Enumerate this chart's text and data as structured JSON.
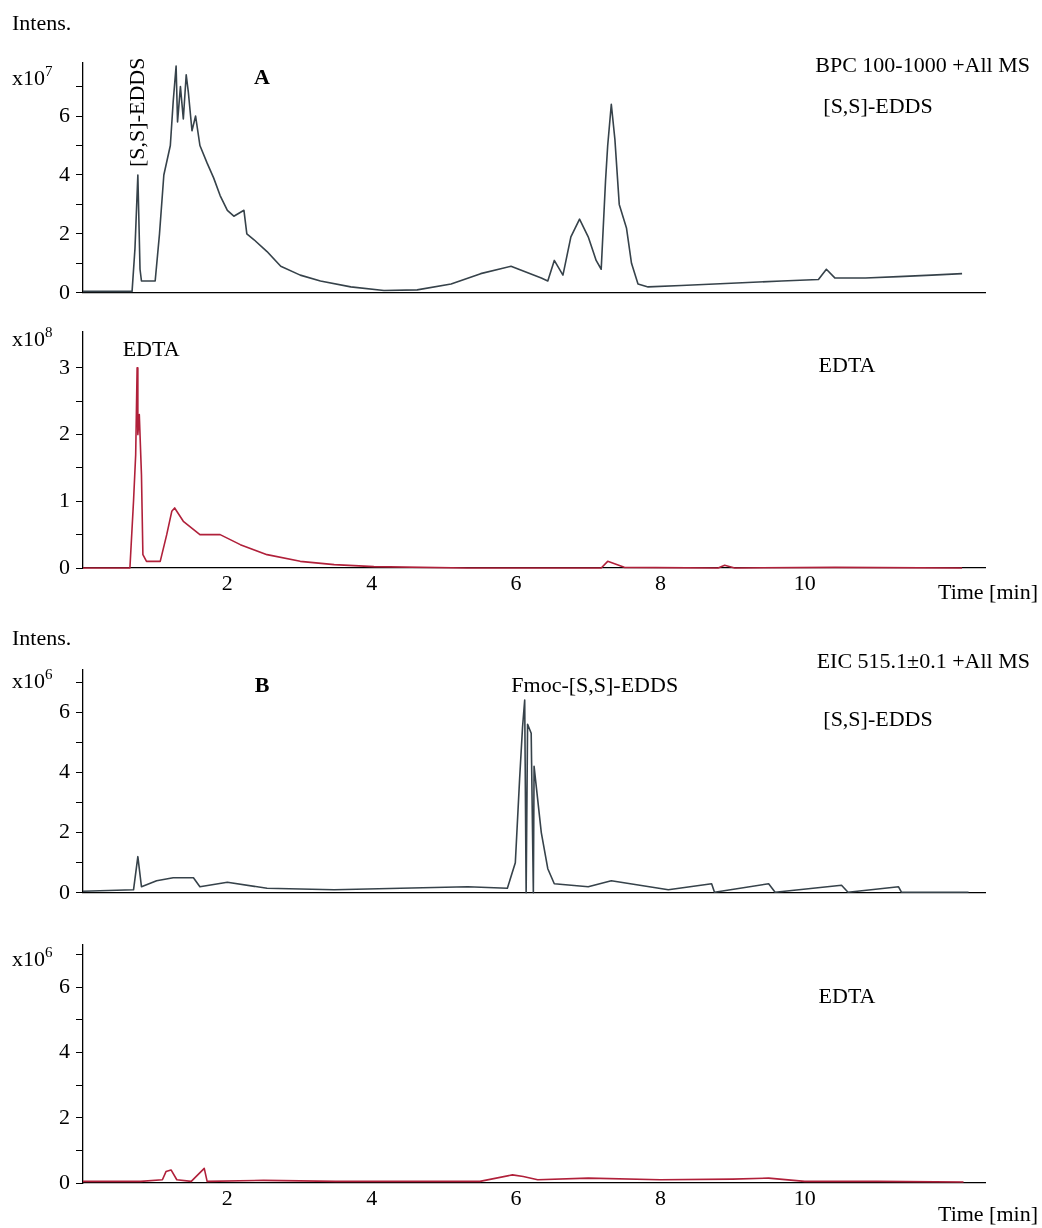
{
  "chart_data": [
    {
      "type": "line",
      "title": "Intens.",
      "ylabel": "x10$^{7}$",
      "tick_labels": "y",
      "xlim": [
        0,
        12.5
      ],
      "xticks": [
        2,
        4,
        6,
        8,
        10
      ],
      "ylim": [
        0,
        7.8
      ],
      "yticks": [
        0,
        {
          "value": 1,
          "label": null
        },
        2,
        {
          "value": 3,
          "label": null
        },
        4,
        {
          "value": 5,
          "label": null
        },
        6,
        {
          "value": 7,
          "label": null
        }
      ],
      "series": [
        {
          "color": "#36424a",
          "x": [
            0,
            0.68,
            0.72,
            0.76,
            0.79,
            0.81,
            1.0,
            1.06,
            1.12,
            1.21,
            1.25,
            1.29,
            1.31,
            1.35,
            1.39,
            1.43,
            1.46,
            1.51,
            1.56,
            1.62,
            1.72,
            1.81,
            1.9,
            2.0,
            2.09,
            2.23,
            2.27,
            2.37,
            2.55,
            2.74,
            3.01,
            3.29,
            3.71,
            4.17,
            4.63,
            5.1,
            5.51,
            5.93,
            6.35,
            6.44,
            6.53,
            6.65,
            6.76,
            6.88,
            7.0,
            7.11,
            7.18,
            7.24,
            7.27,
            7.32,
            7.37,
            7.43,
            7.53,
            7.6,
            7.69,
            7.83,
            8.29,
            8.75,
            9.21,
            9.68,
            10.19,
            10.3,
            10.42,
            10.84,
            11.3,
            11.76,
            12.18
          ],
          "values": [
            0.05,
            0.05,
            1.5,
            4.0,
            0.8,
            0.4,
            0.4,
            2.0,
            4.0,
            5.0,
            6.5,
            7.7,
            5.8,
            7.0,
            5.9,
            7.4,
            6.8,
            5.5,
            6.0,
            5.0,
            4.4,
            3.9,
            3.3,
            2.8,
            2.6,
            2.8,
            2.0,
            1.8,
            1.4,
            0.9,
            0.6,
            0.4,
            0.2,
            0.08,
            0.1,
            0.3,
            0.65,
            0.9,
            0.5,
            0.4,
            1.1,
            0.6,
            1.9,
            2.5,
            1.9,
            1.1,
            0.8,
            3.8,
            5.0,
            6.4,
            5.2,
            3.0,
            2.2,
            1.0,
            0.3,
            0.2,
            0.25,
            0.3,
            0.35,
            0.4,
            0.45,
            0.8,
            0.5,
            0.5,
            0.55,
            0.6,
            0.65
          ]
        }
      ],
      "annotations": [
        {
          "text": "[S,S]-EDDS",
          "x": 0.76,
          "y": 4.0
        },
        "A",
        "BPC 100-1000 +All MS",
        "[S,S]-EDDS"
      ]
    },
    {
      "type": "line",
      "ylabel": "x10$^{8}$",
      "xlabel": "Time [min]",
      "xlim": [
        0,
        12.5
      ],
      "xticks": [
        2,
        4,
        6,
        8,
        10
      ],
      "ylim": [
        0,
        3.55
      ],
      "yticks": [
        0,
        {
          "value": 0.5,
          "label": null
        },
        1,
        {
          "value": 1.5,
          "label": null
        },
        2,
        {
          "value": 2.5,
          "label": null
        },
        3
      ],
      "series": [
        {
          "color": "#b0203a",
          "x": [
            0,
            0.65,
            0.7,
            0.73,
            0.75,
            0.76,
            0.78,
            0.81,
            0.83,
            0.88,
            1.07,
            1.16,
            1.23,
            1.27,
            1.39,
            1.62,
            1.9,
            2.18,
            2.55,
            3.01,
            3.48,
            4.03,
            5.33,
            7.18,
            7.27,
            7.5,
            8.8,
            8.89,
            9.03,
            10.42,
            12.18
          ],
          "values": [
            0,
            0,
            1.0,
            1.7,
            3.0,
            2.0,
            2.3,
            1.4,
            0.2,
            0.1,
            0.1,
            0.5,
            0.85,
            0.9,
            0.7,
            0.5,
            0.5,
            0.35,
            0.2,
            0.1,
            0.05,
            0.02,
            0,
            0,
            0.1,
            0.01,
            0,
            0.04,
            0,
            0.01,
            0
          ]
        }
      ],
      "annotations": [
        {
          "text": "EDTA",
          "x": 0.75,
          "y": 3.0
        },
        "EDTA"
      ]
    },
    {
      "type": "line",
      "title": "Intens.",
      "ylabel": "x10$^{6}$",
      "tick_labels": "y",
      "xlim": [
        0,
        12.5
      ],
      "xticks": [
        2,
        4,
        6,
        8,
        10
      ],
      "ylim": [
        0,
        7.4
      ],
      "yticks": [
        0,
        {
          "value": 1,
          "label": null
        },
        2,
        {
          "value": 3,
          "label": null
        },
        4,
        {
          "value": 5,
          "label": null
        },
        6,
        {
          "value": 7,
          "label": null
        }
      ],
      "series": [
        {
          "color": "#36424a",
          "x": [
            0,
            0.7,
            0.76,
            0.81,
            1.02,
            1.25,
            1.53,
            1.62,
            2.0,
            2.55,
            3.48,
            4.4,
            5.33,
            5.88,
            5.99,
            6.05,
            6.09,
            6.12,
            6.14,
            6.16,
            6.21,
            6.24,
            6.25,
            6.35,
            6.44,
            6.53,
            7.0,
            7.32,
            8.11,
            8.71,
            8.75,
            9.5,
            9.59,
            10.51,
            10.6,
            11.3,
            11.34,
            12.27
          ],
          "values": [
            0.05,
            0.1,
            1.2,
            0.2,
            0.4,
            0.5,
            0.5,
            0.2,
            0.35,
            0.15,
            0.1,
            0.15,
            0.2,
            0.15,
            1.0,
            3.8,
            5.5,
            6.4,
            0,
            5.6,
            5.3,
            0,
            4.2,
            2.0,
            0.8,
            0.3,
            0.2,
            0.4,
            0.1,
            0.3,
            0.02,
            0.3,
            0.02,
            0.25,
            0.02,
            0.2,
            0.02,
            0.02
          ]
        }
      ],
      "annotations": [
        "B",
        {
          "text": "Fmoc-[S,S]-EDDS",
          "x": 6.12,
          "y": 6.4
        },
        "EIC 515.1±0.1 +All MS",
        "[S,S]-EDDS"
      ]
    },
    {
      "type": "line",
      "ylabel": "x10$^{6}$",
      "xlabel": "Time [min]",
      "xlim": [
        0,
        12.5
      ],
      "xticks": [
        2,
        4,
        6,
        8,
        10
      ],
      "ylim": [
        0,
        7.3
      ],
      "yticks": [
        0,
        {
          "value": 1,
          "label": null
        },
        2,
        {
          "value": 3,
          "label": null
        },
        4,
        {
          "value": 5,
          "label": null
        },
        6,
        {
          "value": 7,
          "label": null
        }
      ],
      "series": [
        {
          "color": "#b0203a",
          "x": [
            0,
            0.8,
            1.1,
            1.15,
            1.22,
            1.3,
            1.5,
            1.68,
            1.72,
            2.5,
            3.5,
            4.5,
            5.5,
            5.95,
            6.1,
            6.3,
            7.0,
            8.0,
            9.0,
            9.5,
            10.0,
            11.0,
            12.2
          ],
          "values": [
            0.05,
            0.05,
            0.1,
            0.35,
            0.4,
            0.1,
            0.05,
            0.45,
            0.05,
            0.08,
            0.05,
            0.05,
            0.05,
            0.25,
            0.2,
            0.1,
            0.15,
            0.1,
            0.12,
            0.15,
            0.05,
            0.05,
            0.03
          ]
        }
      ],
      "annotations": [
        "EDTA"
      ]
    }
  ]
}
